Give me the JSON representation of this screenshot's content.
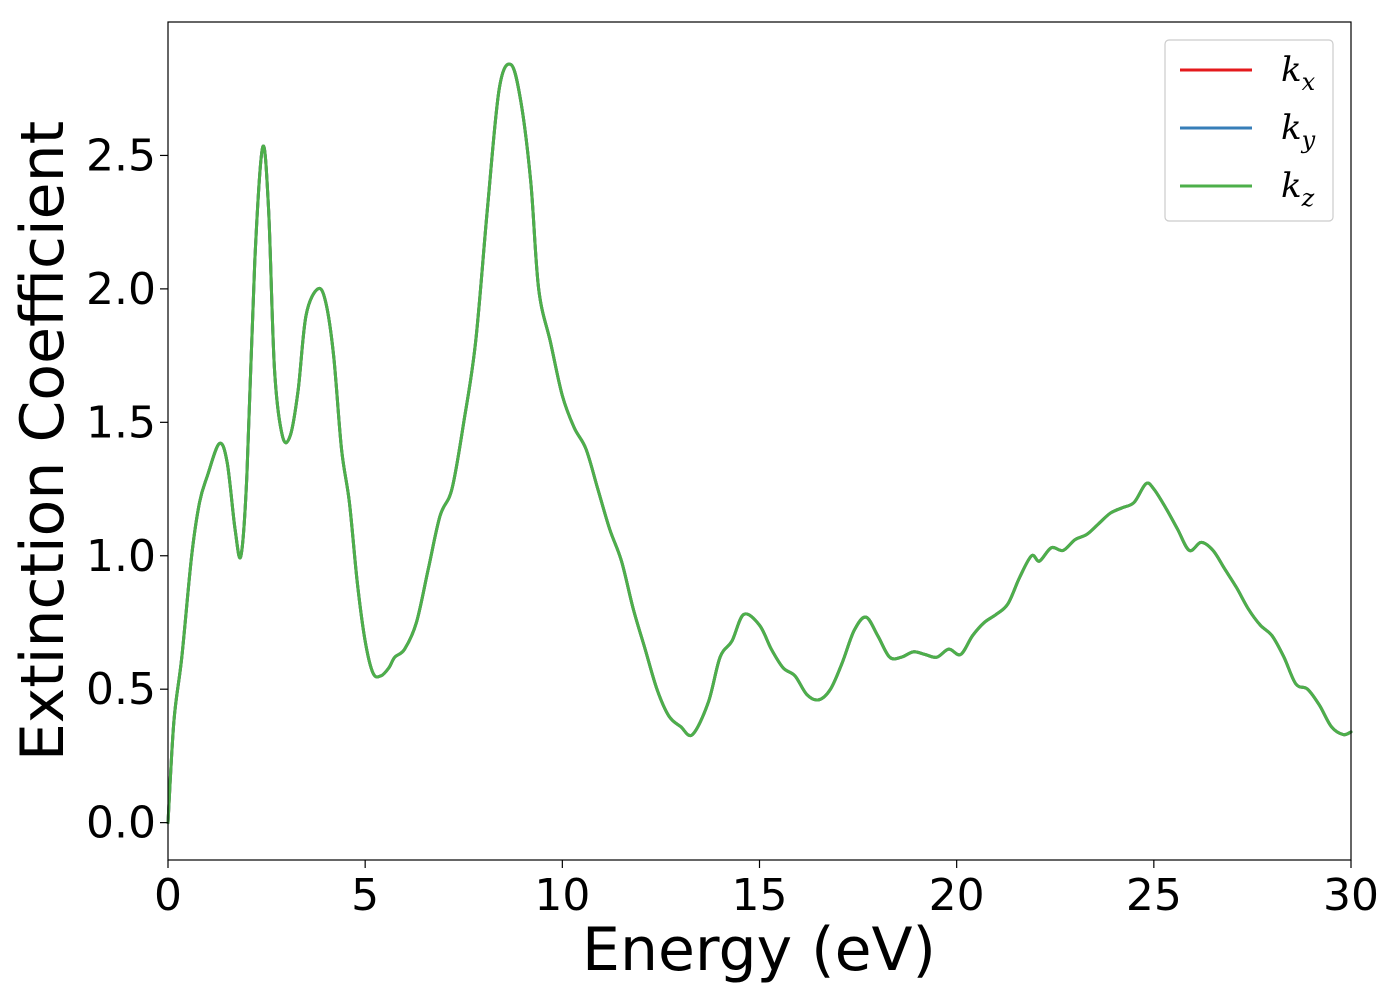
{
  "chart_data": {
    "type": "line",
    "xlabel": "Energy (eV)",
    "ylabel": "Extinction Coefficient",
    "xlim": [
      0,
      30
    ],
    "ylim": [
      -0.14,
      3.0
    ],
    "xticks": [
      "0",
      "5",
      "10",
      "15",
      "20",
      "25",
      "30"
    ],
    "yticks": [
      "0.0",
      "0.5",
      "1.0",
      "1.5",
      "2.0",
      "2.5"
    ],
    "grid": false,
    "legend_position": "top-right",
    "series": [
      {
        "name": "k_x",
        "legend_base": "k",
        "legend_sub": "x",
        "color": "#e41a1c",
        "x": [
          0,
          0.15,
          0.35,
          0.6,
          0.8,
          1.0,
          1.3,
          1.5,
          1.7,
          1.85,
          2.0,
          2.2,
          2.4,
          2.55,
          2.7,
          2.9,
          3.1,
          3.3,
          3.5,
          3.8,
          4.0,
          4.2,
          4.4,
          4.6,
          4.8,
          5.0,
          5.2,
          5.4,
          5.6,
          5.75,
          6.0,
          6.3,
          6.6,
          6.9,
          7.2,
          7.5,
          7.8,
          8.1,
          8.4,
          8.7,
          8.95,
          9.2,
          9.4,
          9.7,
          10.0,
          10.3,
          10.6,
          10.9,
          11.2,
          11.5,
          11.8,
          12.1,
          12.4,
          12.7,
          13.0,
          13.3,
          13.7,
          14.0,
          14.3,
          14.6,
          15.0,
          15.3,
          15.6,
          15.9,
          16.2,
          16.5,
          16.8,
          17.1,
          17.4,
          17.7,
          18.0,
          18.3,
          18.6,
          18.9,
          19.2,
          19.5,
          19.8,
          20.1,
          20.4,
          20.7,
          21.0,
          21.3,
          21.6,
          21.9,
          22.1,
          22.4,
          22.7,
          23.0,
          23.3,
          23.6,
          23.9,
          24.2,
          24.5,
          24.8,
          25.0,
          25.3,
          25.6,
          25.9,
          26.2,
          26.5,
          26.8,
          27.1,
          27.4,
          27.7,
          28.0,
          28.3,
          28.6,
          28.9,
          29.2,
          29.5,
          29.8,
          30.0
        ],
        "values": [
          0.0,
          0.38,
          0.62,
          1.0,
          1.2,
          1.3,
          1.42,
          1.35,
          1.1,
          1.0,
          1.3,
          2.1,
          2.53,
          2.3,
          1.7,
          1.45,
          1.45,
          1.62,
          1.9,
          2.0,
          1.95,
          1.75,
          1.4,
          1.2,
          0.9,
          0.68,
          0.56,
          0.55,
          0.58,
          0.62,
          0.65,
          0.75,
          0.95,
          1.15,
          1.25,
          1.5,
          1.8,
          2.3,
          2.75,
          2.84,
          2.7,
          2.4,
          2.0,
          1.8,
          1.6,
          1.48,
          1.4,
          1.25,
          1.1,
          0.98,
          0.8,
          0.65,
          0.5,
          0.4,
          0.36,
          0.33,
          0.45,
          0.62,
          0.68,
          0.78,
          0.74,
          0.65,
          0.58,
          0.55,
          0.48,
          0.46,
          0.5,
          0.6,
          0.72,
          0.77,
          0.7,
          0.62,
          0.62,
          0.64,
          0.63,
          0.62,
          0.65,
          0.63,
          0.7,
          0.75,
          0.78,
          0.82,
          0.92,
          1.0,
          0.98,
          1.03,
          1.02,
          1.06,
          1.08,
          1.12,
          1.16,
          1.18,
          1.2,
          1.27,
          1.25,
          1.18,
          1.1,
          1.02,
          1.05,
          1.02,
          0.95,
          0.88,
          0.8,
          0.74,
          0.7,
          0.62,
          0.52,
          0.5,
          0.44,
          0.36,
          0.33,
          0.34
        ]
      },
      {
        "name": "k_y",
        "legend_base": "k",
        "legend_sub": "y",
        "color": "#377eb8",
        "x": [
          0,
          0.15,
          0.35,
          0.6,
          0.8,
          1.0,
          1.3,
          1.5,
          1.7,
          1.85,
          2.0,
          2.2,
          2.4,
          2.55,
          2.7,
          2.9,
          3.1,
          3.3,
          3.5,
          3.8,
          4.0,
          4.2,
          4.4,
          4.6,
          4.8,
          5.0,
          5.2,
          5.4,
          5.6,
          5.75,
          6.0,
          6.3,
          6.6,
          6.9,
          7.2,
          7.5,
          7.8,
          8.1,
          8.4,
          8.7,
          8.95,
          9.2,
          9.4,
          9.7,
          10.0,
          10.3,
          10.6,
          10.9,
          11.2,
          11.5,
          11.8,
          12.1,
          12.4,
          12.7,
          13.0,
          13.3,
          13.7,
          14.0,
          14.3,
          14.6,
          15.0,
          15.3,
          15.6,
          15.9,
          16.2,
          16.5,
          16.8,
          17.1,
          17.4,
          17.7,
          18.0,
          18.3,
          18.6,
          18.9,
          19.2,
          19.5,
          19.8,
          20.1,
          20.4,
          20.7,
          21.0,
          21.3,
          21.6,
          21.9,
          22.1,
          22.4,
          22.7,
          23.0,
          23.3,
          23.6,
          23.9,
          24.2,
          24.5,
          24.8,
          25.0,
          25.3,
          25.6,
          25.9,
          26.2,
          26.5,
          26.8,
          27.1,
          27.4,
          27.7,
          28.0,
          28.3,
          28.6,
          28.9,
          29.2,
          29.5,
          29.8,
          30.0
        ],
        "values": [
          0.0,
          0.38,
          0.62,
          1.0,
          1.2,
          1.3,
          1.42,
          1.35,
          1.1,
          1.0,
          1.3,
          2.1,
          2.53,
          2.3,
          1.7,
          1.45,
          1.45,
          1.62,
          1.9,
          2.0,
          1.95,
          1.75,
          1.4,
          1.2,
          0.9,
          0.68,
          0.56,
          0.55,
          0.58,
          0.62,
          0.65,
          0.75,
          0.95,
          1.15,
          1.25,
          1.5,
          1.8,
          2.3,
          2.75,
          2.84,
          2.7,
          2.4,
          2.0,
          1.8,
          1.6,
          1.48,
          1.4,
          1.25,
          1.1,
          0.98,
          0.8,
          0.65,
          0.5,
          0.4,
          0.36,
          0.33,
          0.45,
          0.62,
          0.68,
          0.78,
          0.74,
          0.65,
          0.58,
          0.55,
          0.48,
          0.46,
          0.5,
          0.6,
          0.72,
          0.77,
          0.7,
          0.62,
          0.62,
          0.64,
          0.63,
          0.62,
          0.65,
          0.63,
          0.7,
          0.75,
          0.78,
          0.82,
          0.92,
          1.0,
          0.98,
          1.03,
          1.02,
          1.06,
          1.08,
          1.12,
          1.16,
          1.18,
          1.2,
          1.27,
          1.25,
          1.18,
          1.1,
          1.02,
          1.05,
          1.02,
          0.95,
          0.88,
          0.8,
          0.74,
          0.7,
          0.62,
          0.52,
          0.5,
          0.44,
          0.36,
          0.33,
          0.34
        ]
      },
      {
        "name": "k_z",
        "legend_base": "k",
        "legend_sub": "z",
        "color": "#4daf4a",
        "x": [
          0,
          0.15,
          0.35,
          0.6,
          0.8,
          1.0,
          1.3,
          1.5,
          1.7,
          1.85,
          2.0,
          2.2,
          2.4,
          2.55,
          2.7,
          2.9,
          3.1,
          3.3,
          3.5,
          3.8,
          4.0,
          4.2,
          4.4,
          4.6,
          4.8,
          5.0,
          5.2,
          5.4,
          5.6,
          5.75,
          6.0,
          6.3,
          6.6,
          6.9,
          7.2,
          7.5,
          7.8,
          8.1,
          8.4,
          8.7,
          8.95,
          9.2,
          9.4,
          9.7,
          10.0,
          10.3,
          10.6,
          10.9,
          11.2,
          11.5,
          11.8,
          12.1,
          12.4,
          12.7,
          13.0,
          13.3,
          13.7,
          14.0,
          14.3,
          14.6,
          15.0,
          15.3,
          15.6,
          15.9,
          16.2,
          16.5,
          16.8,
          17.1,
          17.4,
          17.7,
          18.0,
          18.3,
          18.6,
          18.9,
          19.2,
          19.5,
          19.8,
          20.1,
          20.4,
          20.7,
          21.0,
          21.3,
          21.6,
          21.9,
          22.1,
          22.4,
          22.7,
          23.0,
          23.3,
          23.6,
          23.9,
          24.2,
          24.5,
          24.8,
          25.0,
          25.3,
          25.6,
          25.9,
          26.2,
          26.5,
          26.8,
          27.1,
          27.4,
          27.7,
          28.0,
          28.3,
          28.6,
          28.9,
          29.2,
          29.5,
          29.8,
          30.0
        ],
        "values": [
          0.0,
          0.38,
          0.62,
          1.0,
          1.2,
          1.3,
          1.42,
          1.35,
          1.1,
          1.0,
          1.3,
          2.1,
          2.53,
          2.3,
          1.7,
          1.45,
          1.45,
          1.62,
          1.9,
          2.0,
          1.95,
          1.75,
          1.4,
          1.2,
          0.9,
          0.68,
          0.56,
          0.55,
          0.58,
          0.62,
          0.65,
          0.75,
          0.95,
          1.15,
          1.25,
          1.5,
          1.8,
          2.3,
          2.75,
          2.84,
          2.7,
          2.4,
          2.0,
          1.8,
          1.6,
          1.48,
          1.4,
          1.25,
          1.1,
          0.98,
          0.8,
          0.65,
          0.5,
          0.4,
          0.36,
          0.33,
          0.45,
          0.62,
          0.68,
          0.78,
          0.74,
          0.65,
          0.58,
          0.55,
          0.48,
          0.46,
          0.5,
          0.6,
          0.72,
          0.77,
          0.7,
          0.62,
          0.62,
          0.64,
          0.63,
          0.62,
          0.65,
          0.63,
          0.7,
          0.75,
          0.78,
          0.82,
          0.92,
          1.0,
          0.98,
          1.03,
          1.02,
          1.06,
          1.08,
          1.12,
          1.16,
          1.18,
          1.2,
          1.27,
          1.25,
          1.18,
          1.1,
          1.02,
          1.05,
          1.02,
          0.95,
          0.88,
          0.8,
          0.74,
          0.7,
          0.62,
          0.52,
          0.5,
          0.44,
          0.36,
          0.33,
          0.34
        ]
      }
    ]
  }
}
